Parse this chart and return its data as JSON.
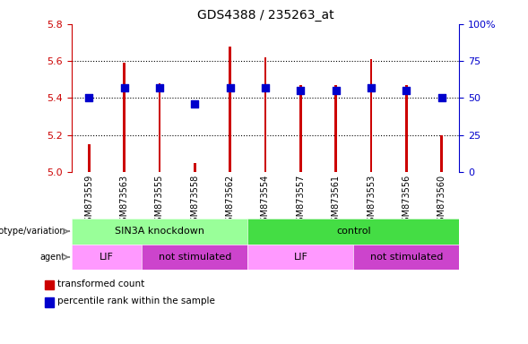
{
  "title": "GDS4388 / 235263_at",
  "samples": [
    "GSM873559",
    "GSM873563",
    "GSM873555",
    "GSM873558",
    "GSM873562",
    "GSM873554",
    "GSM873557",
    "GSM873561",
    "GSM873553",
    "GSM873556",
    "GSM873560"
  ],
  "transformed_counts": [
    5.15,
    5.59,
    5.48,
    5.05,
    5.68,
    5.62,
    5.47,
    5.47,
    5.61,
    5.47,
    5.2
  ],
  "percentile_ranks": [
    50,
    57,
    57,
    46,
    57,
    57,
    55,
    55,
    57,
    55,
    50
  ],
  "ylim_left": [
    5.0,
    5.8
  ],
  "ylim_right": [
    0,
    100
  ],
  "yticks_left": [
    5.0,
    5.2,
    5.4,
    5.6,
    5.8
  ],
  "yticks_right": [
    0,
    25,
    50,
    75,
    100
  ],
  "bar_color": "#cc0000",
  "dot_color": "#0000cc",
  "genotype_groups": [
    {
      "label": "SIN3A knockdown",
      "start": 0,
      "end": 5,
      "color": "#99ff99"
    },
    {
      "label": "control",
      "start": 5,
      "end": 11,
      "color": "#44dd44"
    }
  ],
  "agent_groups": [
    {
      "label": "LIF",
      "start": 0,
      "end": 2,
      "color": "#ff99ff"
    },
    {
      "label": "not stimulated",
      "start": 2,
      "end": 5,
      "color": "#cc44cc"
    },
    {
      "label": "LIF",
      "start": 5,
      "end": 8,
      "color": "#ff99ff"
    },
    {
      "label": "not stimulated",
      "start": 8,
      "end": 11,
      "color": "#cc44cc"
    }
  ],
  "legend_items": [
    {
      "label": "transformed count",
      "color": "#cc0000"
    },
    {
      "label": "percentile rank within the sample",
      "color": "#0000cc"
    }
  ],
  "bar_width": 0.07,
  "dot_size": 30,
  "gray_bg": "#c8c8c8",
  "gridline_y": [
    5.2,
    5.4,
    5.6
  ],
  "left_ax_color": "#cc0000",
  "right_ax_color": "#0000cc"
}
